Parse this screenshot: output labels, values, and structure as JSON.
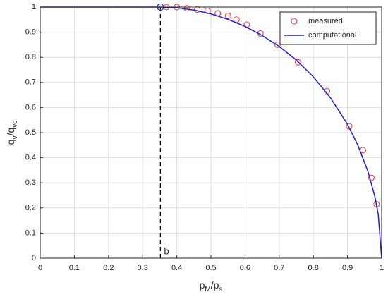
{
  "chart_data": {
    "type": "line",
    "xlabel_parts": [
      "p",
      "M",
      "/p",
      "s"
    ],
    "ylabel_parts": [
      "q",
      "v",
      "/q",
      "vc"
    ],
    "xlim": [
      0,
      1
    ],
    "ylim": [
      0,
      1
    ],
    "xticks": [
      0,
      0.1,
      0.2,
      0.3,
      0.4,
      0.5,
      0.6,
      0.7,
      0.8,
      0.9,
      1
    ],
    "yticks": [
      0,
      0.1,
      0.2,
      0.3,
      0.4,
      0.5,
      0.6,
      0.7,
      0.8,
      0.9,
      1
    ],
    "grid": true,
    "legend": "northeast",
    "series": [
      {
        "name": "measured",
        "kind": "scatter",
        "color": "#ff3030",
        "x": [
          0.37,
          0.4,
          0.43,
          0.46,
          0.49,
          0.52,
          0.55,
          0.575,
          0.605,
          0.645,
          0.695,
          0.755,
          0.84,
          0.905,
          0.945,
          0.97,
          0.985
        ],
        "values": [
          1.0,
          1.0,
          0.995,
          0.99,
          0.985,
          0.975,
          0.965,
          0.95,
          0.93,
          0.895,
          0.85,
          0.78,
          0.665,
          0.525,
          0.43,
          0.32,
          0.215
        ]
      },
      {
        "name": "computational",
        "kind": "line",
        "color": "#1f1fd6",
        "x": [
          0,
          0.35,
          0.4,
          0.45,
          0.5,
          0.55,
          0.6,
          0.65,
          0.7,
          0.75,
          0.8,
          0.85,
          0.9,
          0.93,
          0.96,
          0.98,
          0.99,
          1.0
        ],
        "values": [
          1,
          1,
          0.997,
          0.988,
          0.973,
          0.951,
          0.923,
          0.887,
          0.843,
          0.789,
          0.722,
          0.639,
          0.533,
          0.451,
          0.345,
          0.246,
          0.175,
          0
        ]
      }
    ],
    "annotation": {
      "x": 0.352,
      "y": 1,
      "label": "b",
      "color": "#1f1fd6"
    }
  }
}
